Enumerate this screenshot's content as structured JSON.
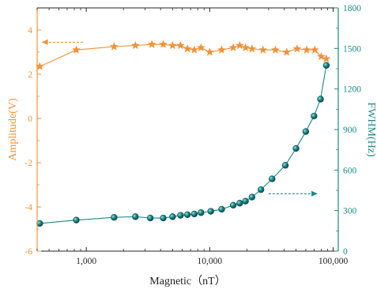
{
  "chart_data": {
    "type": "line",
    "title": "",
    "xlabel": "Magnetic（nT）",
    "ylabel_left": "Amplitude(V)",
    "ylabel_right": "FWHM(Hz)",
    "x_scale": "log",
    "xlim": [
      400,
      110000
    ],
    "x_ticks": [
      1000,
      10000,
      100000
    ],
    "x_tick_labels": [
      "1,000",
      "10,000",
      "100,000"
    ],
    "ylim_left": [
      -6,
      5
    ],
    "y_ticks_left": [
      -6,
      -4,
      -2,
      0,
      2,
      4
    ],
    "y_tick_labels_left": [
      "-6",
      "-4",
      "-2",
      "0",
      "2",
      "4"
    ],
    "ylim_right": [
      0,
      1800
    ],
    "y_ticks_right": [
      0,
      300,
      600,
      900,
      1200,
      1500,
      1800
    ],
    "y_tick_labels_right": [
      "0",
      "300",
      "600",
      "900",
      "1200",
      "1500",
      "1800"
    ],
    "grid": false,
    "colors": {
      "amplitude": "#f0923a",
      "fwhm": "#1a8a88",
      "fwhm_marker_edge": "#0b5453",
      "axis": "#222222"
    },
    "series": [
      {
        "axis": "left",
        "marker": "star",
        "x": [
          420,
          830,
          1680,
          2500,
          3400,
          4200,
          5000,
          5800,
          6600,
          7500,
          8500,
          10000,
          12500,
          15500,
          17500,
          19500,
          22000,
          27000,
          34000,
          42000,
          51000,
          61000,
          71000,
          80000,
          88000
        ],
        "y": [
          2.35,
          3.1,
          3.25,
          3.3,
          3.35,
          3.35,
          3.3,
          3.3,
          3.15,
          3.1,
          3.2,
          3.0,
          3.1,
          3.2,
          3.3,
          3.2,
          3.15,
          3.1,
          3.1,
          3.0,
          3.15,
          3.1,
          3.1,
          2.8,
          2.7
        ]
      },
      {
        "axis": "right",
        "marker": "circle",
        "x": [
          420,
          830,
          1680,
          2500,
          3300,
          4200,
          5000,
          5800,
          6600,
          7500,
          8500,
          10200,
          12500,
          15500,
          17500,
          19500,
          22000,
          26000,
          32000,
          41000,
          50000,
          60000,
          70000,
          79000,
          88000
        ],
        "y": [
          205,
          230,
          250,
          255,
          245,
          245,
          255,
          265,
          270,
          275,
          285,
          295,
          310,
          340,
          355,
          370,
          400,
          455,
          535,
          635,
          760,
          885,
          1000,
          1125,
          1375
        ]
      }
    ],
    "annotations": [
      {
        "type": "arrow",
        "direction": "left",
        "style": "dashed",
        "axis": "left",
        "y": 3.45,
        "x_from": 940,
        "x_to": 435
      },
      {
        "type": "arrow",
        "direction": "right",
        "style": "dashed",
        "axis": "right",
        "y": 425,
        "x_from": 30000,
        "x_to": 75000
      }
    ]
  }
}
